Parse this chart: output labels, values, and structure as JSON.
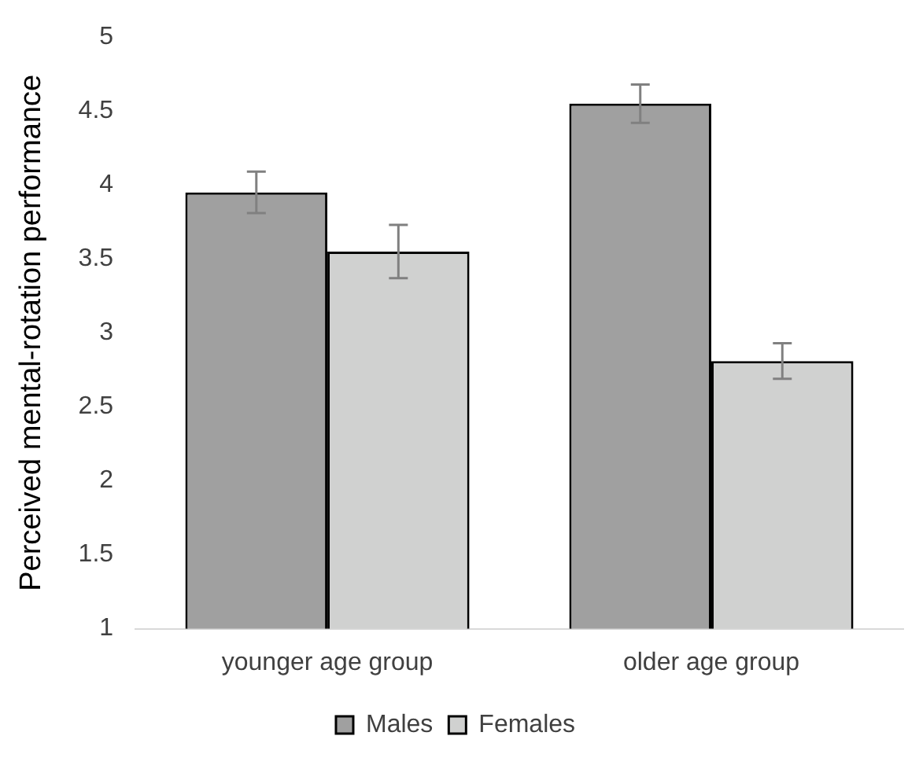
{
  "chart_data": {
    "type": "bar",
    "ylabel": "Perceived mental-rotation performance",
    "categories": [
      "younger age group",
      "older age group"
    ],
    "series": [
      {
        "name": "Males",
        "color": "#a0a0a0",
        "values": [
          3.95,
          4.55
        ],
        "errors": [
          0.14,
          0.13
        ]
      },
      {
        "name": "Females",
        "color": "#d0d1d0",
        "values": [
          3.55,
          2.81
        ],
        "errors": [
          0.18,
          0.12
        ]
      }
    ],
    "ylim": [
      1,
      5
    ],
    "yticks": [
      1,
      1.5,
      2,
      2.5,
      3,
      3.5,
      4,
      4.5,
      5
    ],
    "grid": false,
    "legend": "bottom"
  }
}
